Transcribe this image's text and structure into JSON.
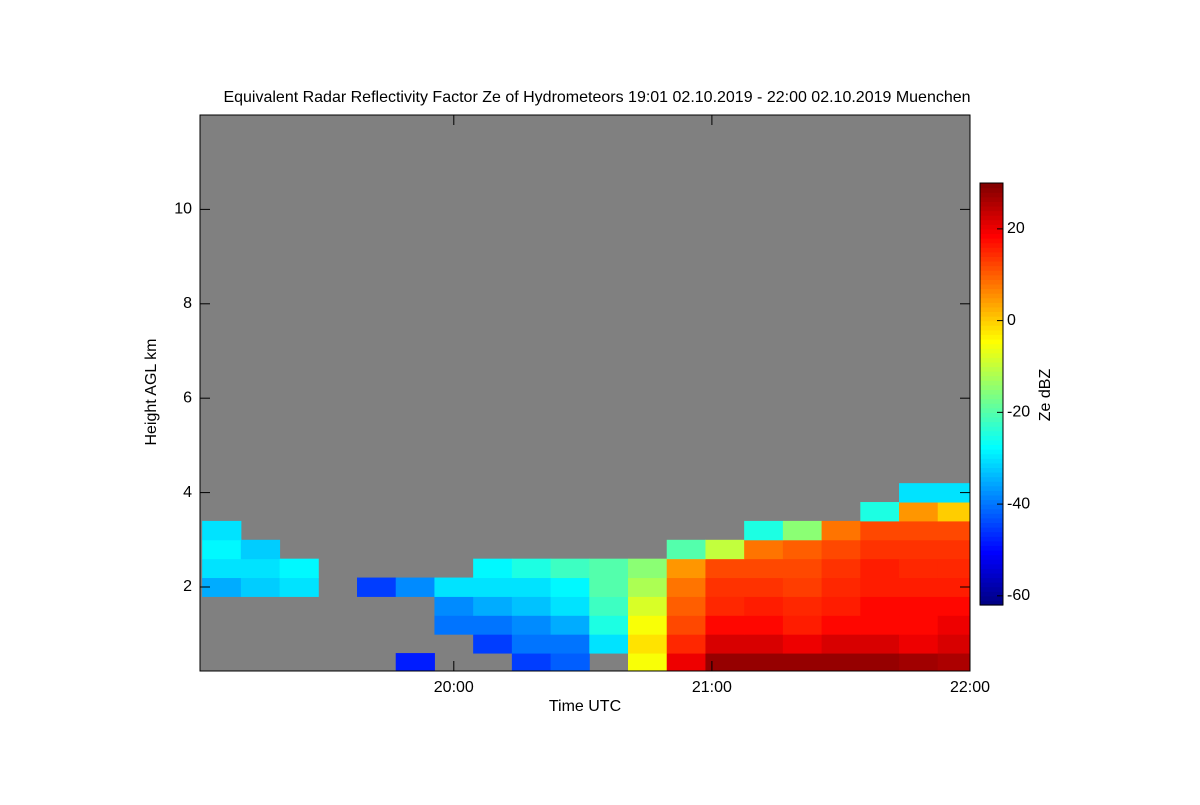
{
  "chart_data": {
    "type": "heatmap",
    "title": "Equivalent Radar Reflectivity Factor Ze of Hydrometeors   19:01 02.10.2019 - 22:00 02.10.2019 Muenchen",
    "xlabel": "Time UTC",
    "ylabel": "Height AGL km",
    "colorbar_label": "Ze dBZ",
    "xlim": [
      19.0167,
      22
    ],
    "xticks": [
      {
        "value": 20,
        "label": "20:00"
      },
      {
        "value": 21,
        "label": "21:00"
      },
      {
        "value": 22,
        "label": "22:00"
      }
    ],
    "ylim": [
      0.22,
      12
    ],
    "yticks": [
      2,
      4,
      6,
      8,
      10
    ],
    "clim": [
      -62,
      30
    ],
    "colorbar_ticks": [
      -60,
      -40,
      -20,
      0,
      20
    ],
    "colormap": "jet",
    "background": "#808080",
    "x": [
      19.1,
      19.25,
      19.4,
      19.55,
      19.7,
      19.85,
      20.0,
      20.15,
      20.3,
      20.45,
      20.6,
      20.75,
      20.9,
      21.05,
      21.2,
      21.35,
      21.5,
      21.65,
      21.8,
      21.95
    ],
    "y": [
      0.4,
      0.8,
      1.2,
      1.6,
      2.0,
      2.4,
      2.8,
      3.2,
      3.6,
      4.0
    ],
    "z": [
      [
        null,
        null,
        null,
        null,
        null,
        -48,
        null,
        null,
        -45,
        -42,
        null,
        -5,
        20,
        28,
        28,
        28,
        28,
        28,
        27,
        26
      ],
      [
        null,
        null,
        null,
        null,
        null,
        null,
        null,
        -45,
        -40,
        -40,
        -30,
        -2,
        15,
        22,
        22,
        20,
        22,
        22,
        20,
        22
      ],
      [
        null,
        null,
        null,
        null,
        null,
        null,
        -40,
        -40,
        -38,
        -35,
        -25,
        -5,
        12,
        18,
        18,
        16,
        18,
        18,
        18,
        20
      ],
      [
        null,
        null,
        null,
        null,
        null,
        null,
        -38,
        -35,
        -33,
        -30,
        -22,
        -8,
        10,
        15,
        16,
        15,
        16,
        18,
        18,
        18
      ],
      [
        -35,
        -32,
        -30,
        null,
        -45,
        -38,
        -30,
        -30,
        -30,
        -28,
        -20,
        -12,
        8,
        14,
        14,
        13,
        15,
        16,
        16,
        16
      ],
      [
        -30,
        -30,
        -28,
        null,
        null,
        null,
        null,
        -28,
        -25,
        -22,
        -20,
        -15,
        5,
        12,
        12,
        12,
        14,
        16,
        15,
        15
      ],
      [
        -28,
        -32,
        null,
        null,
        null,
        null,
        null,
        null,
        null,
        null,
        null,
        null,
        -20,
        -10,
        8,
        10,
        12,
        14,
        14,
        14
      ],
      [
        -30,
        null,
        null,
        null,
        null,
        null,
        null,
        null,
        null,
        null,
        null,
        null,
        null,
        null,
        -25,
        -15,
        8,
        12,
        12,
        12
      ],
      [
        null,
        null,
        null,
        null,
        null,
        null,
        null,
        null,
        null,
        null,
        null,
        null,
        null,
        null,
        null,
        null,
        null,
        -25,
        5,
        0
      ],
      [
        null,
        null,
        null,
        null,
        null,
        null,
        null,
        null,
        null,
        null,
        null,
        null,
        null,
        null,
        null,
        null,
        null,
        null,
        -30,
        -30
      ]
    ]
  }
}
